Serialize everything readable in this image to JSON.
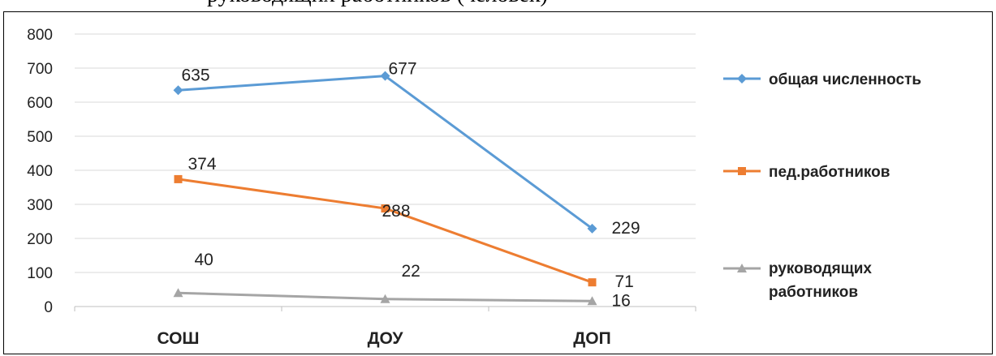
{
  "caption_top": "руководящих работников (человек)",
  "chart_data": {
    "type": "line",
    "title": "",
    "xlabel": "",
    "ylabel": "",
    "categories": [
      "СОШ",
      "ДОУ",
      "ДОП"
    ],
    "ylim": [
      0,
      800
    ],
    "yticks": [
      0,
      100,
      200,
      300,
      400,
      500,
      600,
      700,
      800
    ],
    "grid": true,
    "legend_position": "right",
    "series": [
      {
        "name": "общая численность",
        "values": [
          635,
          677,
          229
        ],
        "labels": [
          "635",
          "677",
          "229"
        ],
        "color": "#5b9bd5",
        "marker": "diamond"
      },
      {
        "name": "пед.работников",
        "values": [
          374,
          288,
          71
        ],
        "labels": [
          "374",
          "288",
          "71"
        ],
        "color": "#ed7d31",
        "marker": "square"
      },
      {
        "name": "руководящих работников",
        "legend_lines": [
          "руководящих",
          "работников"
        ],
        "values": [
          40,
          22,
          16
        ],
        "labels": [
          "40",
          "22",
          "16"
        ],
        "color": "#a5a5a5",
        "marker": "triangle"
      }
    ]
  }
}
